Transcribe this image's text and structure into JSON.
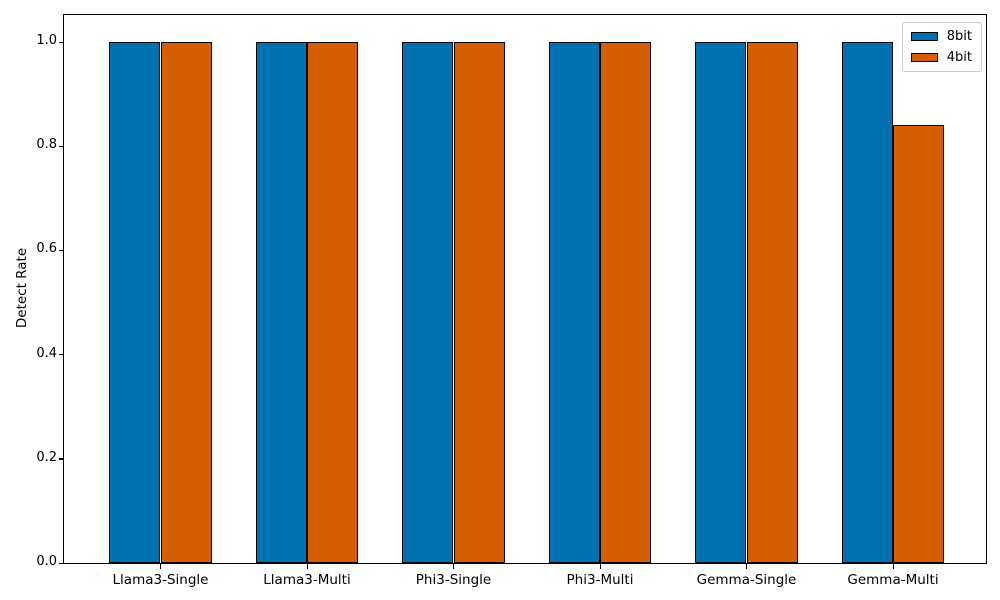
{
  "chart_data": {
    "type": "bar",
    "categories": [
      "Llama3-Single",
      "Llama3-Multi",
      "Phi3-Single",
      "Phi3-Multi",
      "Gemma-Single",
      "Gemma-Multi"
    ],
    "series": [
      {
        "name": "8bit",
        "color": "#0072b2",
        "values": [
          1.0,
          1.0,
          1.0,
          1.0,
          1.0,
          1.0
        ]
      },
      {
        "name": "4bit",
        "color": "#d55e00",
        "values": [
          1.0,
          1.0,
          1.0,
          1.0,
          1.0,
          0.84
        ]
      }
    ],
    "xlabel": "",
    "ylabel": "Detect Rate",
    "ylim": [
      0.0,
      1.05
    ],
    "yticks": [
      0.0,
      0.2,
      0.4,
      0.6,
      0.8,
      1.0
    ],
    "ytick_labels": [
      "0.0",
      "0.2",
      "0.4",
      "0.6",
      "0.8",
      "1.0"
    ],
    "legend_position": "upper right",
    "legend_entries": [
      "8bit",
      "4bit"
    ],
    "bar_edge_color": "#000000",
    "grid": false
  }
}
